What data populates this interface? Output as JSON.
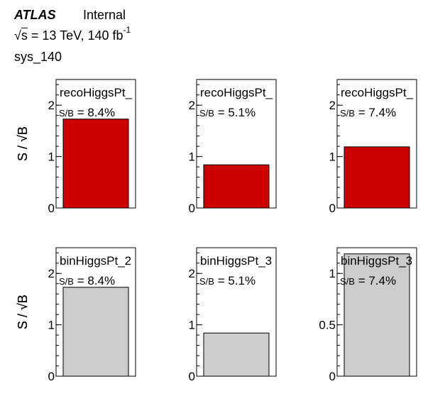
{
  "header": {
    "experiment": "ATLAS",
    "status": "Internal",
    "energy_prefix": "s",
    "energy_text": " = 13 TeV, 140 fb",
    "lumi_exponent": "-1",
    "label": "sys_140"
  },
  "colors": {
    "reco_fill": "#cc0000",
    "bin_fill": "#cccccc",
    "axis": "#000000"
  },
  "chart_data": [
    {
      "type": "bar",
      "title": "recoHiggsPt_",
      "annotation": "S/B = 8.4%",
      "ylabel": "S / √B",
      "yticks": [
        0,
        1,
        2
      ],
      "ylim": [
        0,
        2.5
      ],
      "values": [
        1.73
      ],
      "fill": "#cc0000"
    },
    {
      "type": "bar",
      "title": "recoHiggsPt_",
      "annotation": "S/B = 5.1%",
      "ylabel": "S / √B",
      "yticks": [
        0,
        1,
        2
      ],
      "ylim": [
        0,
        2.5
      ],
      "values": [
        0.84
      ],
      "fill": "#cc0000"
    },
    {
      "type": "bar",
      "title": "recoHiggsPt_",
      "annotation": "S/B = 7.4%",
      "ylabel": "S / √B",
      "yticks": [
        0,
        1,
        2
      ],
      "ylim": [
        0,
        2.5
      ],
      "values": [
        1.19
      ],
      "fill": "#cc0000"
    },
    {
      "type": "bar",
      "title": "binHiggsPt_2",
      "annotation": "S/B = 8.4%",
      "ylabel": "S / √B",
      "yticks": [
        0,
        1,
        2
      ],
      "ylim": [
        0,
        2.5
      ],
      "values": [
        1.73
      ],
      "fill": "#cccccc"
    },
    {
      "type": "bar",
      "title": "binHiggsPt_3",
      "annotation": "S/B = 5.1%",
      "ylabel": "S / √B",
      "yticks": [
        0,
        1,
        2
      ],
      "ylim": [
        0,
        2.5
      ],
      "values": [
        0.84
      ],
      "fill": "#cccccc"
    },
    {
      "type": "bar",
      "title": "binHiggsPt_3",
      "annotation": "S/B = 7.4%",
      "ylabel": "S / √B",
      "yticks": [
        0,
        0.5,
        1
      ],
      "ylim": [
        0,
        1.25
      ],
      "values": [
        1.19
      ],
      "fill": "#cccccc"
    }
  ]
}
